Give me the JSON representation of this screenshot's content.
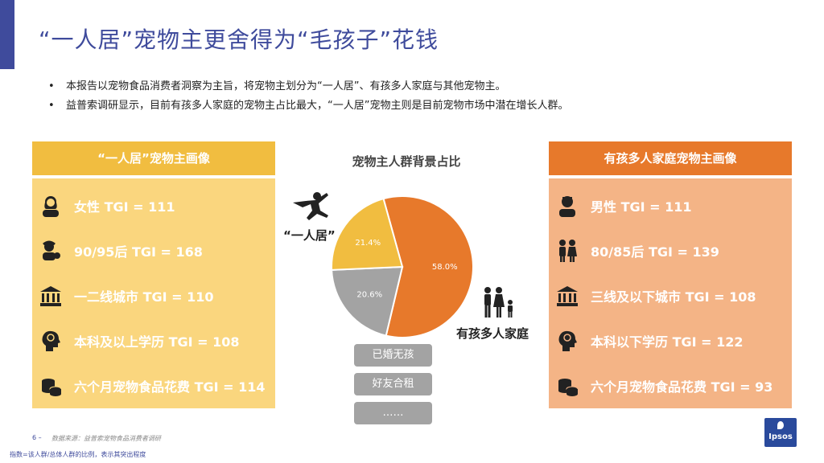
{
  "title": "“一人居”宠物主更舍得为“毛孩子”花钱",
  "bullets": [
    "本报告以宠物食品消费者洞察为主旨，将宠物主划分为“一人居”、有孩多人家庭与其他宠物主。",
    "益普索调研显示，目前有孩多人家庭的宠物主占比最大，“一人居”宠物主则是目前宠物市场中潜在增长人群。"
  ],
  "left_panel": {
    "header": "“一人居”宠物主画像",
    "rows": [
      {
        "icon": "female-icon",
        "text": "女性 TGI = 111"
      },
      {
        "icon": "young-person-icon",
        "text": "90/95后 TGI = 168"
      },
      {
        "icon": "city-building-icon",
        "text": "一二线城市 TGI = 110"
      },
      {
        "icon": "brain-head-icon",
        "text": "本科及以上学历 TGI = 108"
      },
      {
        "icon": "coins-icon",
        "text": "六个月宠物食品花费 TGI = 114"
      }
    ]
  },
  "right_panel": {
    "header": "有孩多人家庭宠物主画像",
    "rows": [
      {
        "icon": "male-icon",
        "text": "男性 TGI = 111"
      },
      {
        "icon": "couple-icon",
        "text": "80/85后 TGI = 139"
      },
      {
        "icon": "city-building-icon",
        "text": "三线及以下城市 TGI = 108"
      },
      {
        "icon": "brain-head-icon",
        "text": "本科以下学历 TGI = 122"
      },
      {
        "icon": "coins-icon",
        "text": "六个月宠物食品花费 TGI = 93"
      }
    ]
  },
  "chart_data": {
    "type": "pie",
    "title": "宠物主人群背景占比",
    "slices": [
      {
        "label": "有孩多人家庭",
        "value": 58.0,
        "display": "58.0%",
        "color": "#e7792b"
      },
      {
        "label": "",
        "value": 20.6,
        "display": "20.6%",
        "color": "#a3a3a3"
      },
      {
        "label": "“一人居”",
        "value": 21.4,
        "display": "21.4%",
        "color": "#f1bd40"
      }
    ]
  },
  "pie_labels": {
    "single": "“一人居”",
    "family": "有孩多人家庭"
  },
  "chips": [
    "已婚无孩",
    "好友合租",
    "……"
  ],
  "footer": {
    "page": "6 –",
    "source": "数据来源：益普索宠物食品消费者调研",
    "note": "指数=该人群/总体人群的比例，表示其突出程度"
  },
  "logo_text": "Ipsos"
}
